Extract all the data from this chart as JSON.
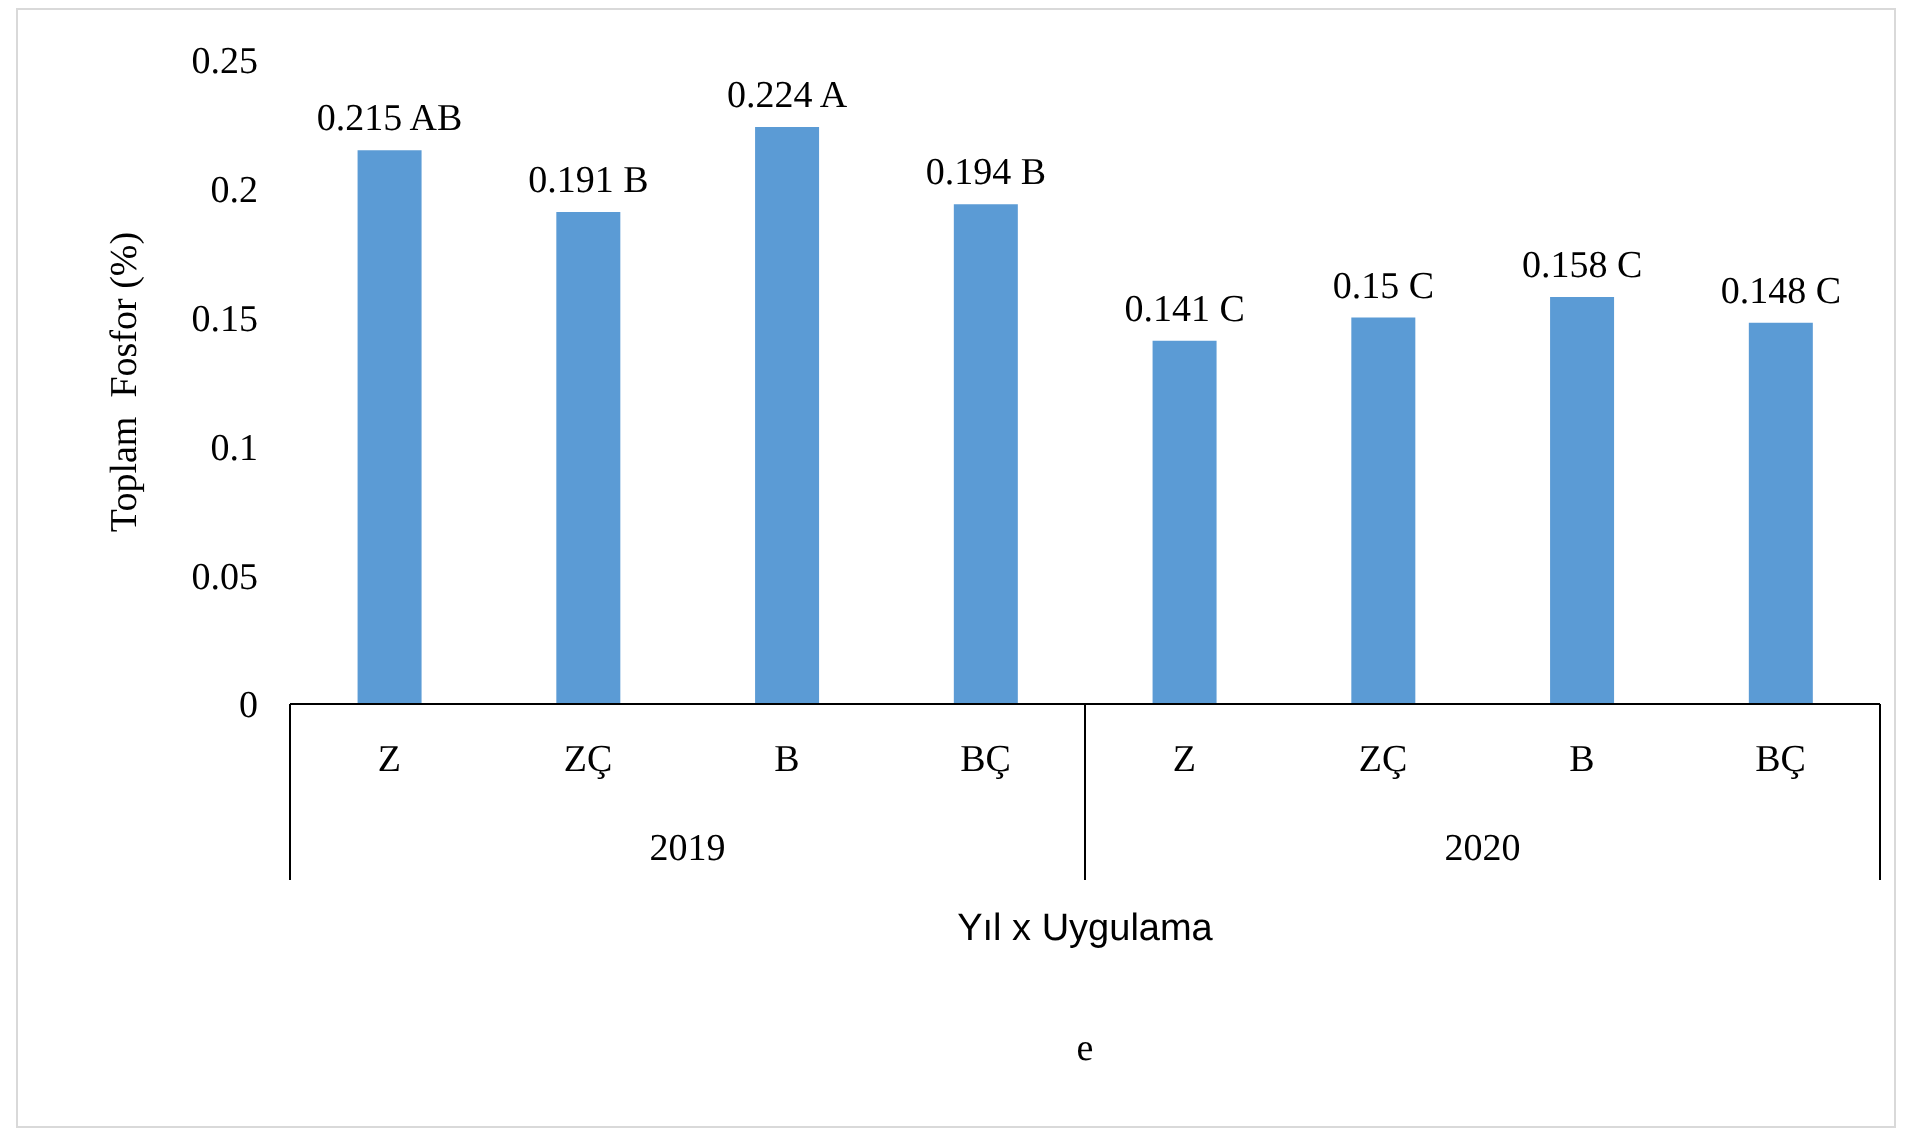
{
  "chart_data": {
    "type": "bar",
    "xlabel": "Yıl x Uygulama",
    "ylabel": "Toplam  Fosfor (%)",
    "categories": [
      "Z",
      "ZÇ",
      "B",
      "BÇ",
      "Z",
      "ZÇ",
      "B",
      "BÇ"
    ],
    "values": [
      0.215,
      0.191,
      0.224,
      0.194,
      0.141,
      0.15,
      0.158,
      0.148
    ],
    "value_labels": [
      "0.215 AB",
      "0.191 B",
      "0.224 A",
      "0.194 B",
      "0.141 C",
      "0.15 C",
      "0.158 C",
      "0.148 C"
    ],
    "color": "#5b9bd5",
    "ylim": [
      0,
      0.25
    ],
    "yticks": [
      0,
      0.05,
      0.1,
      0.15,
      0.2,
      0.25
    ],
    "grid": false,
    "legend": false,
    "annotations": [
      "2019",
      "2020",
      "e"
    ]
  }
}
